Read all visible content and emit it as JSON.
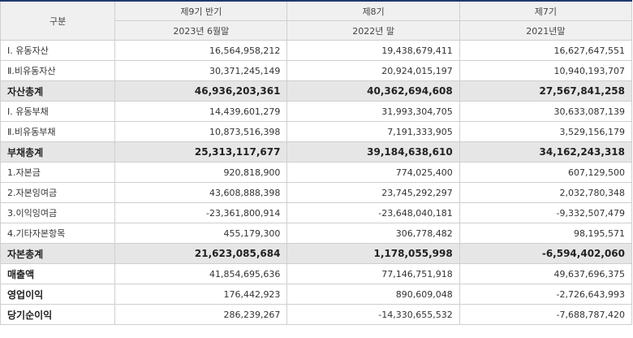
{
  "header": {
    "category": "구분",
    "periods": [
      "제9기 반기",
      "제8기",
      "제7기"
    ],
    "dates": [
      "2023년 6월말",
      "2022년 말",
      "2021년말"
    ]
  },
  "rows": [
    {
      "label": "Ⅰ. 유동자산",
      "values": [
        "16,564,958,212",
        "19,438,679,411",
        "16,627,647,551"
      ],
      "style": "normal"
    },
    {
      "label": "Ⅱ.비유동자산",
      "values": [
        "30,371,245,149",
        "20,924,015,197",
        "10,940,193,707"
      ],
      "style": "normal"
    },
    {
      "label": "자산총계",
      "values": [
        "46,936,203,361",
        "40,362,694,608",
        "27,567,841,258"
      ],
      "style": "total"
    },
    {
      "label": "Ⅰ. 유동부채",
      "values": [
        "14,439,601,279",
        "31,993,304,705",
        "30,633,087,139"
      ],
      "style": "normal"
    },
    {
      "label": "Ⅱ.비유동부채",
      "values": [
        "10,873,516,398",
        "7,191,333,905",
        "3,529,156,179"
      ],
      "style": "normal"
    },
    {
      "label": "부채총계",
      "values": [
        "25,313,117,677",
        "39,184,638,610",
        "34,162,243,318"
      ],
      "style": "total"
    },
    {
      "label": "1.자본금",
      "values": [
        "920,818,900",
        "774,025,400",
        "607,129,500"
      ],
      "style": "normal"
    },
    {
      "label": "2.자본잉여금",
      "values": [
        "43,608,888,398",
        "23,745,292,297",
        "2,032,780,348"
      ],
      "style": "normal"
    },
    {
      "label": "3.이익잉여금",
      "values": [
        "-23,361,800,914",
        "-23,648,040,181",
        "-9,332,507,479"
      ],
      "style": "normal"
    },
    {
      "label": "4.기타자본항목",
      "values": [
        "455,179,300",
        "306,778,482",
        "98,195,571"
      ],
      "style": "normal"
    },
    {
      "label": "자본총계",
      "values": [
        "21,623,085,684",
        "1,178,055,998",
        "-6,594,402,060"
      ],
      "style": "total"
    },
    {
      "label": "매출액",
      "values": [
        "41,854,695,636",
        "77,146,751,918",
        "49,637,696,375"
      ],
      "style": "emph"
    },
    {
      "label": "영업이익",
      "values": [
        "176,442,923",
        "890,609,048",
        "-2,726,643,993"
      ],
      "style": "emph"
    },
    {
      "label": "당기순이익",
      "values": [
        "286,239,267",
        "-14,330,655,532",
        "-7,688,787,420"
      ],
      "style": "emph"
    }
  ]
}
